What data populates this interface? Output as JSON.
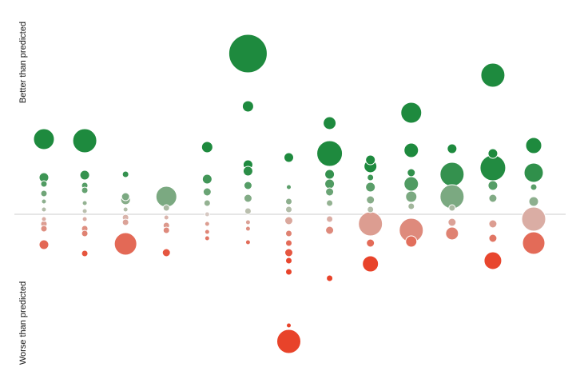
{
  "chart_data": {
    "type": "bubble",
    "y_label_top": "Better than predicted",
    "y_label_bottom": "Worse than predicted",
    "xlim": [
      0,
      14
    ],
    "ylim": [
      -192,
      248
    ],
    "colors": {
      "positive": "#1e8a3e",
      "neutral": "#d6c8c2",
      "negative": "#e8432a"
    },
    "x": [
      1,
      1,
      1,
      1,
      1,
      1,
      1,
      1,
      1,
      1,
      2,
      2,
      2,
      2,
      2,
      2,
      2,
      2,
      2,
      2,
      3,
      3,
      3,
      3,
      3,
      3,
      3,
      4,
      4,
      4,
      4,
      4,
      4,
      5,
      5,
      5,
      5,
      5,
      5,
      5,
      5,
      6,
      6,
      6,
      6,
      6,
      6,
      6,
      6,
      6,
      6,
      7,
      7,
      7,
      7,
      7,
      7,
      7,
      7,
      7,
      7,
      7,
      7,
      8,
      8,
      8,
      8,
      8,
      8,
      8,
      8,
      8,
      9,
      9,
      9,
      9,
      9,
      9,
      9,
      9,
      9,
      10,
      10,
      10,
      10,
      10,
      10,
      10,
      10,
      11,
      11,
      11,
      11,
      11,
      11,
      12,
      12,
      12,
      12,
      12,
      12,
      12,
      12,
      13,
      13,
      13,
      13,
      13,
      13
    ],
    "values": [
      94,
      46,
      38,
      26,
      16,
      6,
      -6,
      -12,
      -18,
      -38,
      92,
      49,
      36,
      30,
      14,
      4,
      -6,
      -18,
      -24,
      -49,
      50,
      22,
      18,
      6,
      -4,
      -10,
      -37,
      22,
      8,
      -4,
      -14,
      -20,
      -48,
      84,
      44,
      28,
      14,
      0,
      -12,
      -22,
      -30,
      201,
      135,
      62,
      54,
      36,
      20,
      4,
      -10,
      -18,
      -35,
      71,
      34,
      16,
      6,
      -8,
      -24,
      -36,
      -48,
      -58,
      -72,
      -139,
      -159,
      114,
      76,
      50,
      38,
      28,
      14,
      -6,
      -20,
      -80,
      68,
      60,
      46,
      34,
      18,
      6,
      -12,
      -36,
      -62,
      127,
      80,
      52,
      38,
      22,
      10,
      -20,
      -34,
      82,
      50,
      22,
      8,
      -10,
      -24,
      174,
      76,
      58,
      36,
      20,
      -12,
      -30,
      -58,
      86,
      52,
      34,
      16,
      -6,
      -36
    ],
    "sizes": [
      13,
      6,
      4,
      4,
      3,
      3,
      3,
      4,
      4,
      6,
      15,
      6,
      4,
      4,
      3,
      3,
      3,
      4,
      4,
      4,
      4,
      5,
      6,
      3,
      4,
      4,
      14,
      13,
      4,
      3,
      4,
      4,
      5,
      7,
      6,
      5,
      4,
      3,
      3,
      3,
      3,
      24,
      7,
      6,
      6,
      5,
      5,
      4,
      3,
      3,
      3,
      6,
      3,
      4,
      4,
      5,
      4,
      4,
      5,
      4,
      4,
      3,
      15,
      8,
      16,
      6,
      6,
      5,
      4,
      4,
      5,
      4,
      6,
      8,
      4,
      6,
      5,
      4,
      15,
      5,
      10,
      13,
      9,
      5,
      9,
      7,
      4,
      15,
      7,
      6,
      15,
      15,
      4,
      5,
      8,
      15,
      6,
      16,
      6,
      5,
      5,
      5,
      11,
      10,
      12,
      4,
      6,
      15,
      14
    ]
  }
}
